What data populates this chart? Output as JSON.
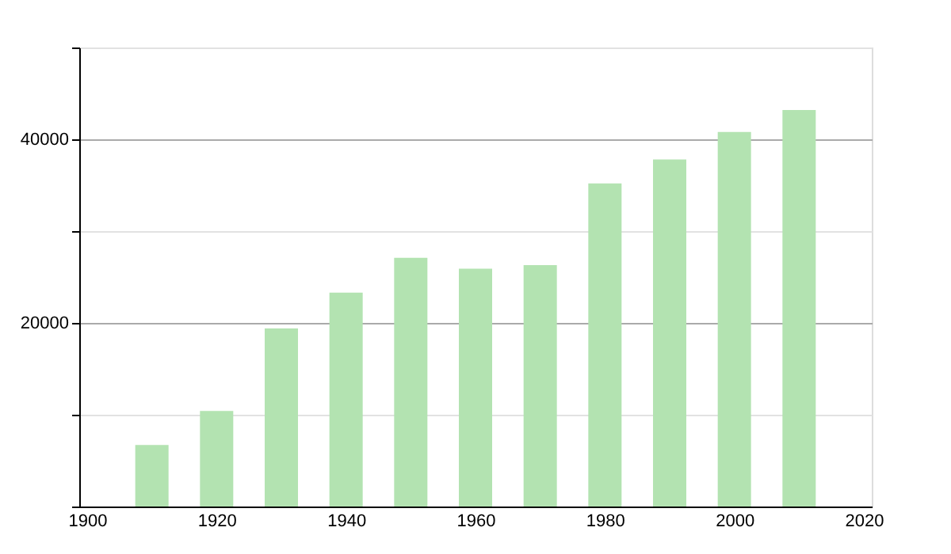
{
  "chart_data": {
    "type": "bar",
    "x": [
      1910,
      1920,
      1930,
      1940,
      1950,
      1960,
      1970,
      1980,
      1990,
      2000,
      2010
    ],
    "values": [
      6700,
      10400,
      19400,
      23300,
      27100,
      25900,
      26300,
      35200,
      37800,
      40800,
      43200
    ],
    "color": "#b3e3b1",
    "xlim": [
      1900,
      2020
    ],
    "xticks": [
      1900,
      1920,
      1940,
      1960,
      1980,
      2000,
      2020
    ],
    "ylim": [
      0,
      50000
    ],
    "yticks": [
      {
        "value": 0,
        "label": null
      },
      {
        "value": 10000,
        "label": null
      },
      20000,
      {
        "value": 30000,
        "label": null
      },
      40000,
      {
        "value": 50000,
        "label": null
      }
    ],
    "grid": "y"
  }
}
